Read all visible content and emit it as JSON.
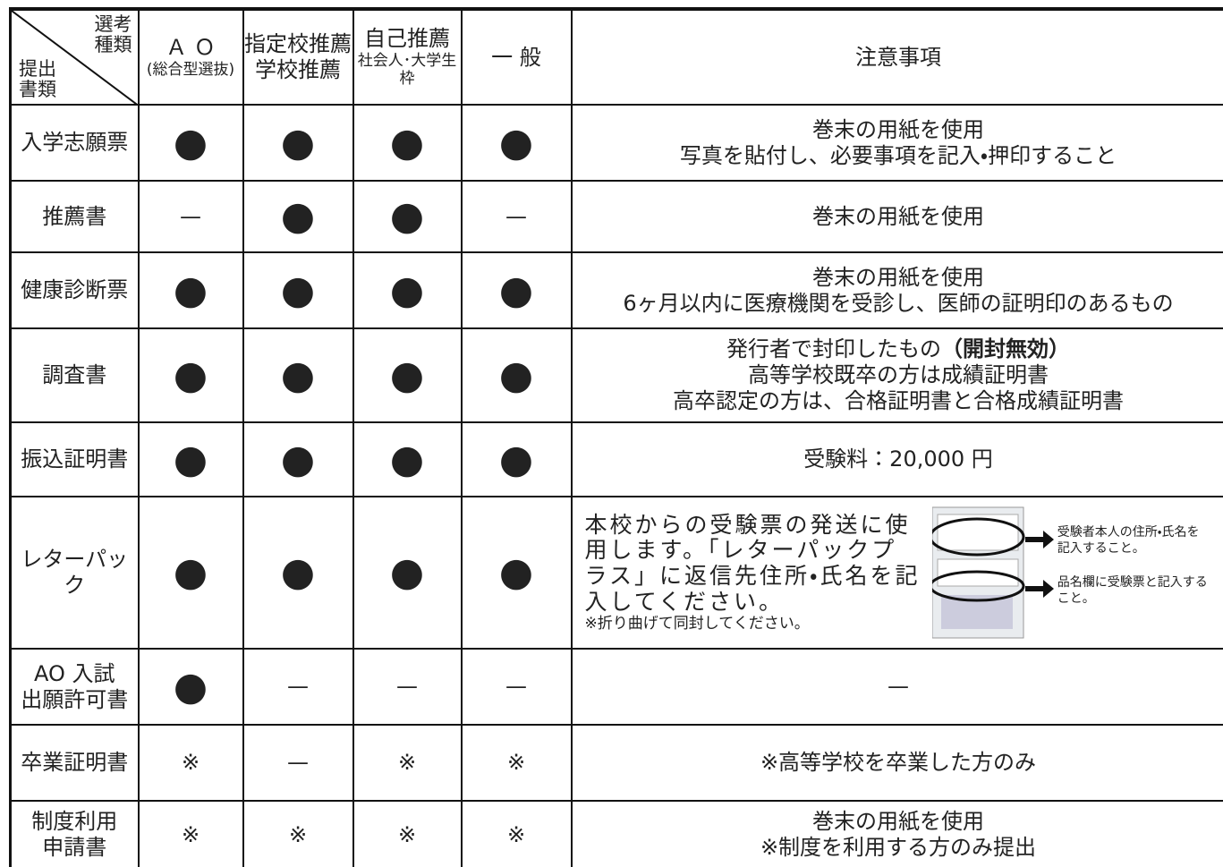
{
  "header": {
    "corner_top": [
      "選考",
      "種類"
    ],
    "corner_bottom": [
      "提出",
      "書類"
    ],
    "columns": [
      [
        "Ａ Ｏ",
        "(総合型選抜)"
      ],
      [
        "指定校推薦",
        "学校推薦"
      ],
      [
        "自己推薦",
        "社会人･大学生枠"
      ],
      [
        "一 般"
      ],
      [
        "注意事項"
      ]
    ]
  },
  "rows": [
    {
      "name": [
        "入学志願票"
      ],
      "marks": [
        "●",
        "●",
        "●",
        "●"
      ],
      "notes": [
        "巻末の用紙を使用",
        "写真を貼付し、必要事項を記入・押印すること"
      ]
    },
    {
      "name": [
        "推薦書"
      ],
      "marks": [
        "—",
        "●",
        "●",
        "—"
      ],
      "notes": [
        "巻末の用紙を使用"
      ]
    },
    {
      "name": [
        "健康診断票"
      ],
      "marks": [
        "●",
        "●",
        "●",
        "●"
      ],
      "notes": [
        "巻末の用紙を使用",
        "6ヶ月以内に医療機関を受診し、医師の証明印のあるもの"
      ]
    },
    {
      "name": [
        "調査書"
      ],
      "marks": [
        "●",
        "●",
        "●",
        "●"
      ],
      "notes": [
        {
          "text": "発行者で封印したもの",
          "bold": "（開封無効）"
        },
        "高等学校既卒の方は成績証明書",
        "高卒認定の方は、合格証明書と合格成績証明書"
      ]
    },
    {
      "name": [
        "振込証明書"
      ],
      "marks": [
        "●",
        "●",
        "●",
        "●"
      ],
      "notes": [
        "受験料：20,000 円"
      ]
    },
    {
      "name": [
        "レターパック"
      ],
      "marks": [
        "●",
        "●",
        "●",
        "●"
      ],
      "notes": [
        "本校からの受験票の発送に使用します。「レターパックプラス」に返信先住所・氏名を記入してください。"
      ],
      "small_note": "※折り曲げて同封してください。",
      "callouts": [
        "受験者本人の住所・氏名を記入すること。",
        "品名欄に受験票と記入すること。"
      ]
    },
    {
      "name": [
        "AO 入試",
        "出願許可書"
      ],
      "marks": [
        "●",
        "—",
        "—",
        "—"
      ],
      "notes": [
        "—"
      ]
    },
    {
      "name": [
        "卒業証明書"
      ],
      "marks": [
        "※",
        "—",
        "※",
        "※"
      ],
      "notes": [
        "※高等学校を卒業した方のみ"
      ]
    },
    {
      "name": [
        "制度利用",
        "申請書"
      ],
      "marks": [
        "※",
        "※",
        "※",
        "※"
      ],
      "notes": [
        "巻末の用紙を使用",
        "※制度を利用する方のみ提出"
      ]
    }
  ]
}
